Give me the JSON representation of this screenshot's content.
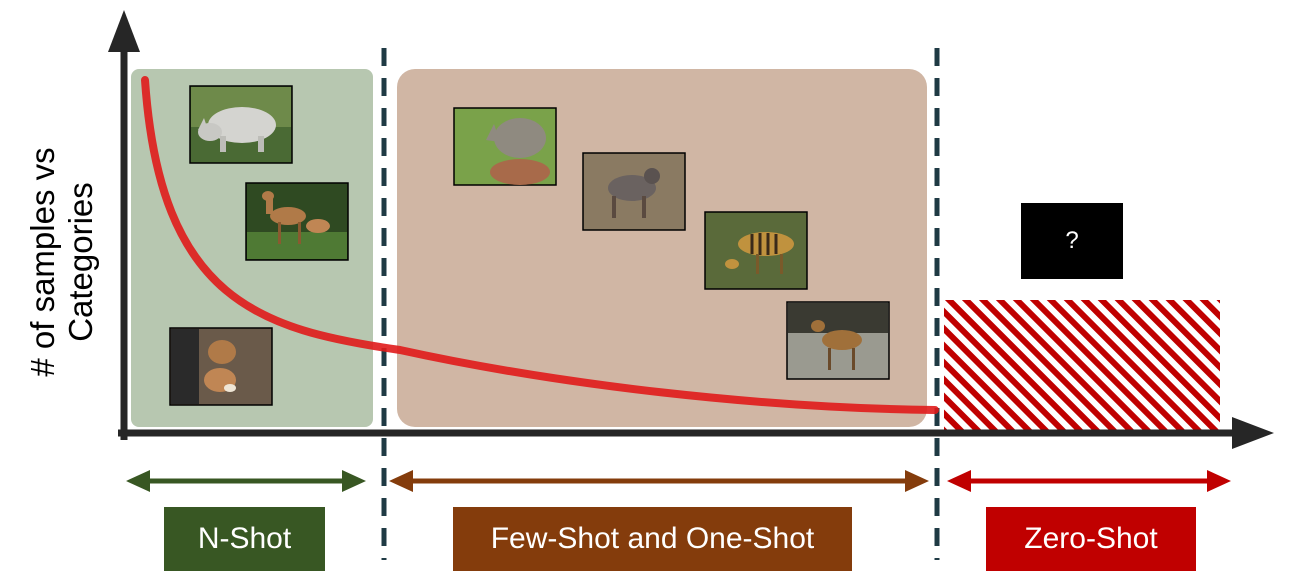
{
  "y_axis_label": [
    "# of samples vs",
    "Categories"
  ],
  "unknown_symbol": "?",
  "regions": [
    {
      "label": "N-Shot",
      "color": "#385723",
      "panel_color": "#b7c7b0"
    },
    {
      "label": "Few-Shot and One-Shot",
      "color": "#843c0c",
      "panel_color": "#d0b6a4"
    },
    {
      "label": "Zero-Shot",
      "color": "#c00000"
    }
  ],
  "images": {
    "n_shot": [
      "rhino-photo",
      "deer-photo",
      "mouse-photo"
    ],
    "few_shot": [
      "baby-rhino-photo",
      "mara-photo",
      "chevrotain-striped-photo",
      "mouse-deer-photo"
    ]
  },
  "colors": {
    "axis": "#262626",
    "curve": "#e01b1b",
    "divider": "#1f3a44"
  }
}
